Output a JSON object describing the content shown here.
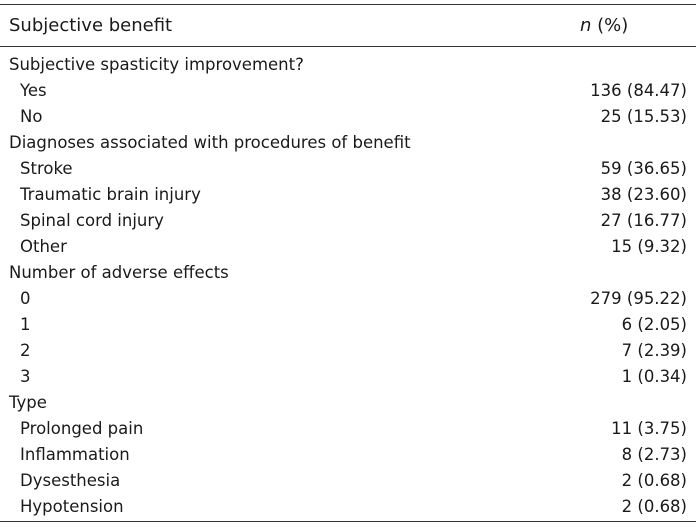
{
  "header": {
    "col1": "Subjective benefit",
    "col2_n": "n",
    "col2_pct": " (%)"
  },
  "rows": [
    {
      "kind": "section",
      "label": "Subjective spasticity improvement?",
      "value": ""
    },
    {
      "kind": "item",
      "label": "Yes",
      "value": "136 (84.47)"
    },
    {
      "kind": "item",
      "label": "No",
      "value": "25 (15.53)"
    },
    {
      "kind": "section",
      "label": "Diagnoses associated with procedures of benefit",
      "value": ""
    },
    {
      "kind": "item",
      "label": "Stroke",
      "value": "59 (36.65)"
    },
    {
      "kind": "item",
      "label": "Traumatic brain injury",
      "value": "38 (23.60)"
    },
    {
      "kind": "item",
      "label": "Spinal cord injury",
      "value": "27 (16.77)"
    },
    {
      "kind": "item",
      "label": "Other",
      "value": "15 (9.32)"
    },
    {
      "kind": "section",
      "label": "Number of adverse effects",
      "value": ""
    },
    {
      "kind": "item",
      "label": "0",
      "value": "279 (95.22)"
    },
    {
      "kind": "item",
      "label": "1",
      "value": "6 (2.05)"
    },
    {
      "kind": "item",
      "label": "2",
      "value": "7 (2.39)"
    },
    {
      "kind": "item",
      "label": "3",
      "value": "1 (0.34)"
    },
    {
      "kind": "section",
      "label": "Type",
      "value": ""
    },
    {
      "kind": "item",
      "label": "Prolonged pain",
      "value": "11 (3.75)"
    },
    {
      "kind": "item",
      "label": "Inflammation",
      "value": "8 (2.73)"
    },
    {
      "kind": "item",
      "label": "Dysesthesia",
      "value": "2 (0.68)"
    },
    {
      "kind": "item",
      "label": "Hypotension",
      "value": "2 (0.68)"
    }
  ]
}
